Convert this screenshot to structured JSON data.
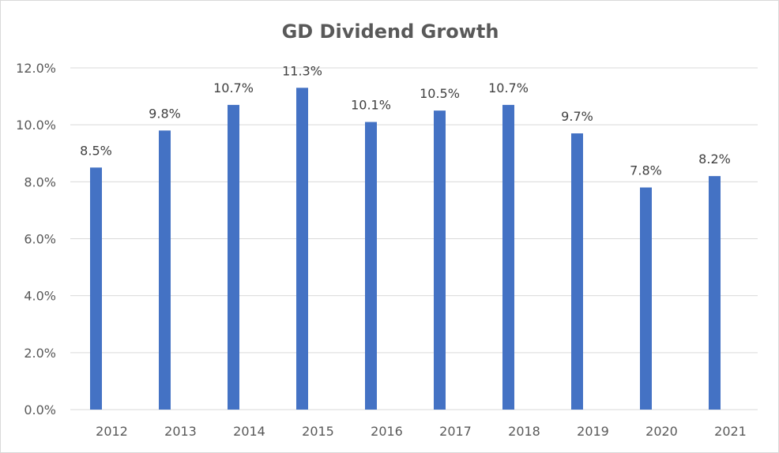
{
  "chart_data": {
    "type": "bar",
    "title": "GD Dividend Growth",
    "xlabel": "",
    "ylabel": "",
    "categories": [
      "2012",
      "2013",
      "2014",
      "2015",
      "2016",
      "2017",
      "2018",
      "2019",
      "2020",
      "2021"
    ],
    "values": [
      8.5,
      9.8,
      10.7,
      11.3,
      10.1,
      10.5,
      10.7,
      9.7,
      7.8,
      8.2
    ],
    "data_labels": [
      "8.5%",
      "9.8%",
      "10.7%",
      "11.3%",
      "10.1%",
      "10.5%",
      "10.7%",
      "9.7%",
      "7.8%",
      "8.2%"
    ],
    "ylim": [
      0,
      12
    ],
    "y_ticks": [
      "0.0%",
      "2.0%",
      "4.0%",
      "6.0%",
      "8.0%",
      "10.0%",
      "12.0%"
    ],
    "grid": true,
    "legend": "none",
    "colors": {
      "bar": "#4472c4",
      "grid": "#d9d9d9",
      "text": "#595959",
      "label": "#404040"
    }
  }
}
